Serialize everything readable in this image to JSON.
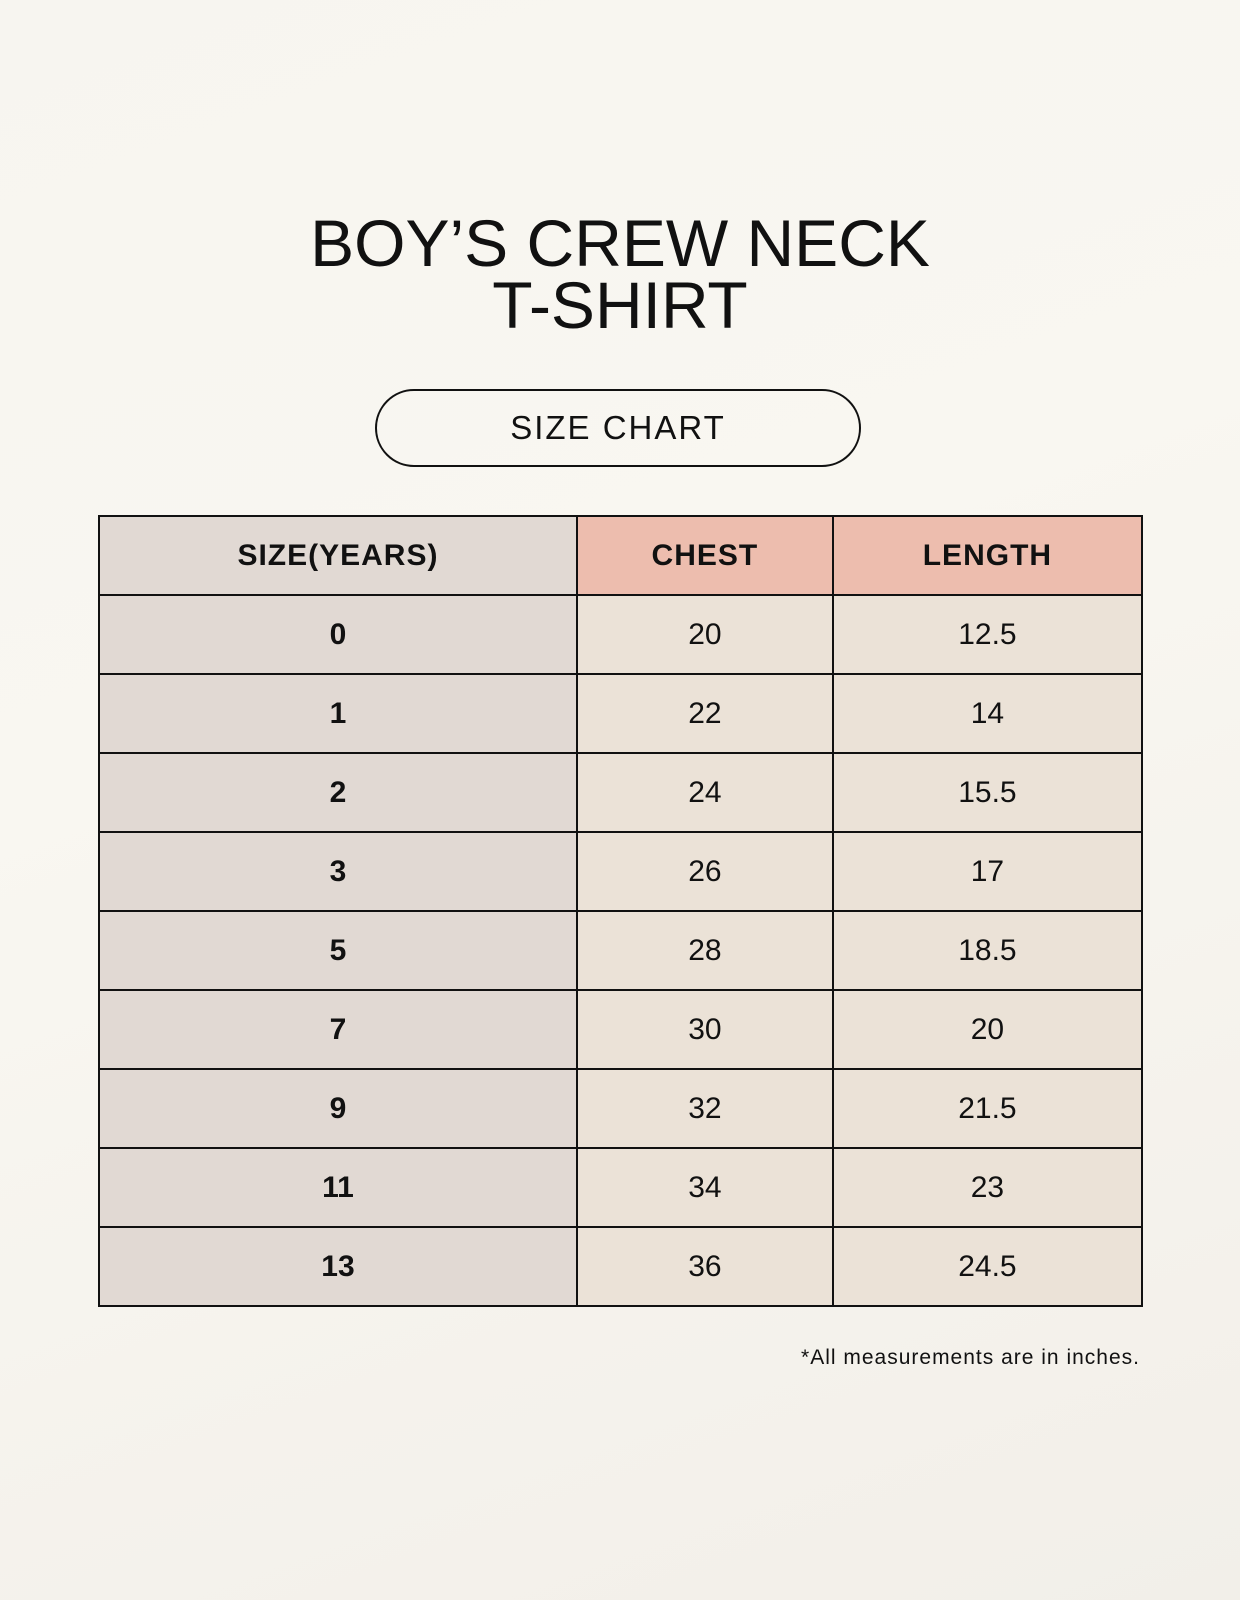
{
  "title": {
    "line1": "BOY’S CREW NECK",
    "line2": "T-SHIRT"
  },
  "badge": "SIZE CHART",
  "table": {
    "headers": [
      "SIZE(YEARS)",
      "CHEST",
      "LENGTH"
    ],
    "rows": [
      [
        "0",
        "20",
        "12.5"
      ],
      [
        "1",
        "22",
        "14"
      ],
      [
        "2",
        "24",
        "15.5"
      ],
      [
        "3",
        "26",
        "17"
      ],
      [
        "5",
        "28",
        "18.5"
      ],
      [
        "7",
        "30",
        "20"
      ],
      [
        "9",
        "32",
        "21.5"
      ],
      [
        "11",
        "34",
        "23"
      ],
      [
        "13",
        "36",
        "24.5"
      ]
    ]
  },
  "footnote": "*All measurements are in inches.",
  "colors": {
    "size_column": "#e1d9d3",
    "header_accent": "#edbdae",
    "cell": "#ebe2d7"
  }
}
